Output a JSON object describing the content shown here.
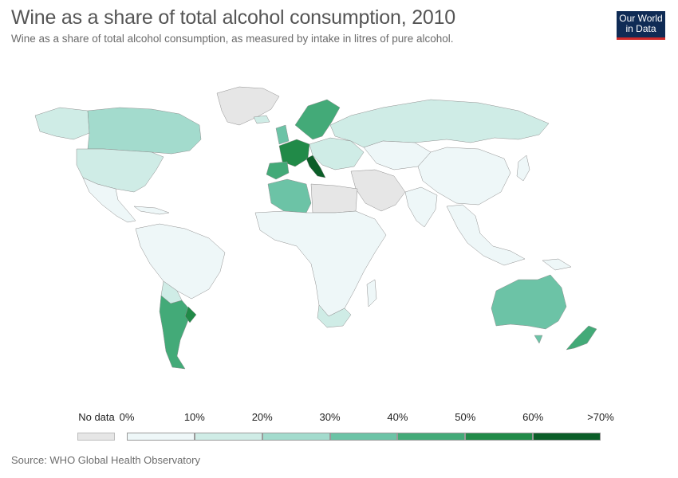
{
  "header": {
    "title": "Wine as a share of total alcohol consumption, 2010",
    "subtitle": "Wine as a share of total alcohol consumption, as measured by intake in litres of pure alcohol.",
    "logo_line1": "Our World",
    "logo_line2": "in Data"
  },
  "legend": {
    "no_data_label": "No data",
    "ticks": [
      "0%",
      "10%",
      "20%",
      "30%",
      "40%",
      "50%",
      "60%",
      ">70%"
    ],
    "bins": [
      {
        "color": "#eef7f8"
      },
      {
        "color": "#cfece6"
      },
      {
        "color": "#a3dbcd"
      },
      {
        "color": "#6cc3a6"
      },
      {
        "color": "#43aa78"
      },
      {
        "color": "#218a48"
      },
      {
        "color": "#0b5e28"
      }
    ],
    "no_data_color": "#e6e6e6"
  },
  "chart_data": {
    "type": "choropleth",
    "unit": "%",
    "year": 2010,
    "regions": [
      {
        "region": "Canada",
        "value": 30
      },
      {
        "region": "United States",
        "value": 17
      },
      {
        "region": "Greenland",
        "value": null
      },
      {
        "region": "Alaska",
        "value": 17
      },
      {
        "region": "Mexico",
        "value": 3
      },
      {
        "region": "Brazil",
        "value": 5
      },
      {
        "region": "Argentina",
        "value": 50
      },
      {
        "region": "Chile",
        "value": 50
      },
      {
        "region": "Uruguay",
        "value": 65
      },
      {
        "region": "Paraguay",
        "value": 15
      },
      {
        "region": "France",
        "value": 62
      },
      {
        "region": "Italy",
        "value": 70
      },
      {
        "region": "Spain",
        "value": 40
      },
      {
        "region": "Portugal",
        "value": 58
      },
      {
        "region": "Sweden",
        "value": 48
      },
      {
        "region": "Norway",
        "value": 38
      },
      {
        "region": "Russia",
        "value": 8
      },
      {
        "region": "Kazakhstan",
        "value": 5
      },
      {
        "region": "China",
        "value": 4
      },
      {
        "region": "India",
        "value": 2
      },
      {
        "region": "Algeria",
        "value": 45
      },
      {
        "region": "Libya",
        "value": null
      },
      {
        "region": "South Africa",
        "value": 18
      },
      {
        "region": "Australia",
        "value": 38
      },
      {
        "region": "New Zealand",
        "value": 45
      },
      {
        "region": "Japan",
        "value": 5
      }
    ]
  },
  "footer": {
    "source": "Source: WHO Global Health Observatory"
  }
}
